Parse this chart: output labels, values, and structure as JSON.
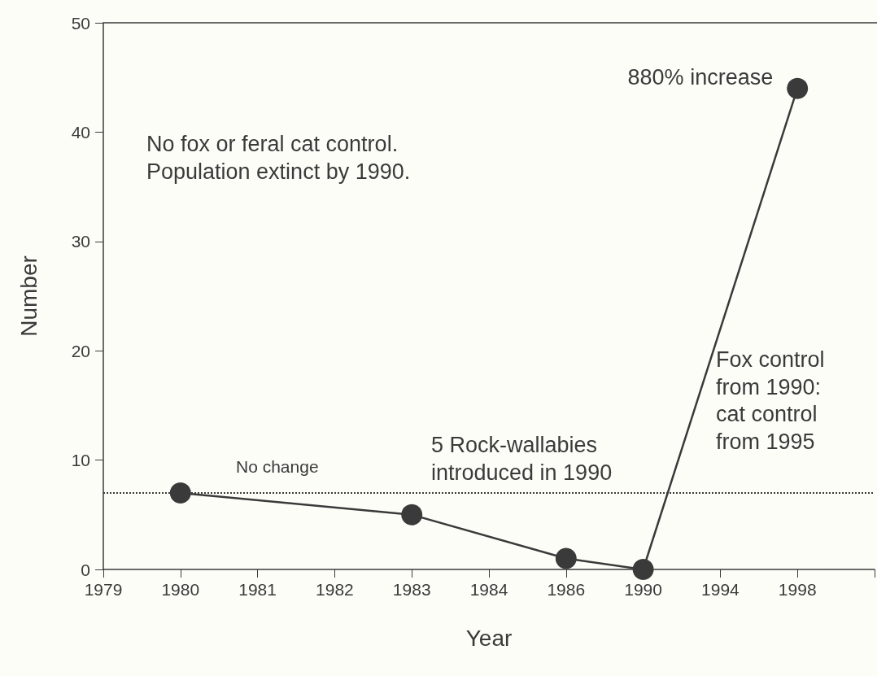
{
  "chart_data": {
    "type": "line",
    "xlabel": "Year",
    "ylabel": "Number",
    "categories": [
      "1979",
      "1980",
      "1981",
      "1982",
      "1983",
      "1984",
      "1986",
      "1990",
      "1994",
      "1998",
      null
    ],
    "series": [
      {
        "color": "#3a3a3a",
        "values": [
          null,
          7,
          null,
          null,
          5,
          null,
          1,
          0,
          null,
          44,
          null
        ]
      }
    ],
    "ylim": [
      0,
      50
    ],
    "yticks": [
      0,
      10,
      20,
      30,
      40,
      50
    ],
    "grid": false,
    "marker": "circle",
    "line_style": "solid",
    "ref_lines": [
      {
        "axis": "y",
        "value": 7,
        "color": "#3a3a3a",
        "line_style": "dotted"
      }
    ],
    "annotations": [
      "No fox or feral cat control. Population extinct by 1990.",
      "No change",
      "5 Rock-wallabies introduced in 1990",
      "Fox control from 1990: cat control from 1995",
      {
        "text": "880% increase",
        "x": "1998",
        "y": 44
      }
    ]
  }
}
